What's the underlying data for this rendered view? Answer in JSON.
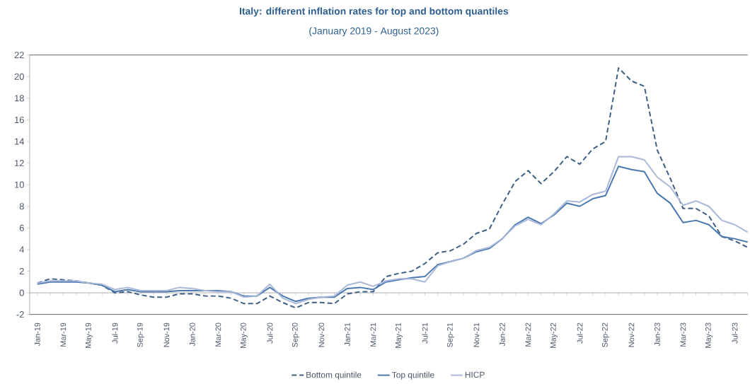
{
  "chart_data": {
    "type": "line",
    "title": "Italy: different inflation rates for top and bottom quantiles",
    "subtitle": "(January 2019 - August 2023)",
    "categories": [
      "Jan-19",
      null,
      "Mar-19",
      null,
      "May-19",
      null,
      "Jul-19",
      null,
      "Sep-19",
      null,
      "Nov-19",
      null,
      "Jan-20",
      null,
      "Mar-20",
      null,
      "May-20",
      null,
      "Jul-20",
      null,
      "Sep-20",
      null,
      "Nov-20",
      null,
      "Jan-21",
      null,
      "Mar-21",
      null,
      "May-21",
      null,
      "Jul-21",
      null,
      "Sep-21",
      null,
      "Nov-21",
      null,
      "Jan-22",
      null,
      "Mar-22",
      null,
      "May-22",
      null,
      "Jul-22",
      null,
      "Sep-22",
      null,
      "Nov-22",
      null,
      "Jan-23",
      null,
      "Mar-23",
      null,
      "May-23",
      null,
      "Jul-23",
      null
    ],
    "series": [
      {
        "name": "Bottom quintile",
        "color": "#3f5f85",
        "line_style": "dashed",
        "values": [
          0.9,
          1.3,
          1.2,
          1.1,
          0.9,
          0.7,
          0.0,
          0.1,
          -0.2,
          -0.4,
          -0.4,
          -0.1,
          -0.1,
          -0.3,
          -0.3,
          -0.5,
          -1.0,
          -1.0,
          -0.3,
          -0.9,
          -1.4,
          -0.9,
          -0.9,
          -1.0,
          -0.1,
          0.1,
          0.1,
          1.5,
          1.8,
          2.0,
          2.7,
          3.7,
          3.9,
          4.5,
          5.5,
          5.9,
          8.2,
          10.3,
          11.3,
          10.1,
          11.2,
          12.6,
          11.9,
          13.3,
          14.0,
          20.8,
          19.6,
          19.1,
          13.2,
          10.6,
          7.8,
          7.8,
          7.1,
          5.2,
          4.8,
          4.2
        ]
      },
      {
        "name": "Top quintile",
        "color": "#4a78b0",
        "line_style": "solid",
        "values": [
          0.8,
          1.0,
          1.0,
          1.0,
          0.9,
          0.7,
          0.1,
          0.3,
          0.1,
          0.1,
          0.1,
          0.2,
          0.2,
          0.2,
          0.2,
          0.1,
          -0.3,
          -0.3,
          0.5,
          -0.3,
          -0.8,
          -0.5,
          -0.4,
          -0.4,
          0.4,
          0.5,
          0.3,
          1.0,
          1.2,
          1.4,
          1.5,
          2.6,
          2.9,
          3.2,
          3.8,
          4.1,
          5.0,
          6.3,
          7.0,
          6.4,
          7.2,
          8.3,
          8.0,
          8.7,
          9.0,
          11.7,
          11.4,
          11.2,
          9.2,
          8.3,
          6.5,
          6.7,
          6.3,
          5.2,
          5.0,
          4.7
        ]
      },
      {
        "name": "HICP",
        "color": "#a9b8d8",
        "line_style": "solid",
        "values": [
          0.9,
          1.1,
          1.1,
          1.1,
          0.9,
          0.8,
          0.3,
          0.5,
          0.2,
          0.2,
          0.2,
          0.5,
          0.4,
          0.2,
          0.1,
          0.1,
          -0.4,
          -0.3,
          0.8,
          -0.5,
          -1.0,
          -0.6,
          -0.4,
          -0.3,
          0.7,
          1.0,
          0.6,
          1.1,
          1.3,
          1.3,
          1.0,
          2.5,
          2.9,
          3.2,
          3.9,
          4.2,
          5.0,
          6.2,
          6.8,
          6.3,
          7.3,
          8.5,
          8.4,
          9.1,
          9.4,
          12.6,
          12.6,
          12.3,
          10.7,
          9.8,
          8.1,
          8.5,
          8.0,
          6.7,
          6.3,
          5.6
        ]
      }
    ],
    "ylim": [
      -2,
      22
    ],
    "yticks": [
      -2,
      0,
      2,
      4,
      6,
      8,
      10,
      12,
      14,
      16,
      18,
      20,
      22
    ],
    "legend": "bottom",
    "marker": "none"
  }
}
